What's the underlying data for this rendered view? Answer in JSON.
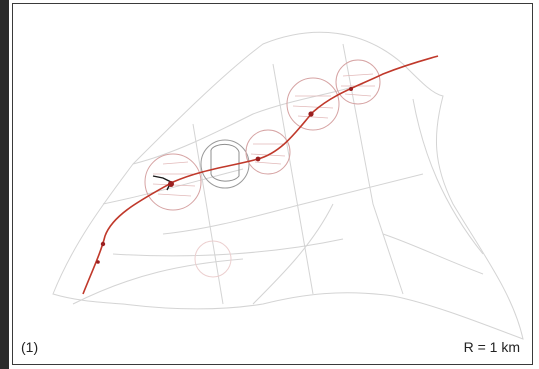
{
  "figure": {
    "panel_label": "(1)",
    "scale_label": "R = 1 km"
  },
  "map": {
    "network_color": "#cfcfcf",
    "route_color": "#c0392b",
    "cluster_color": "#d9a0a0",
    "station_color": "#9b1f1f",
    "branch_color": "#1a1a1a"
  }
}
